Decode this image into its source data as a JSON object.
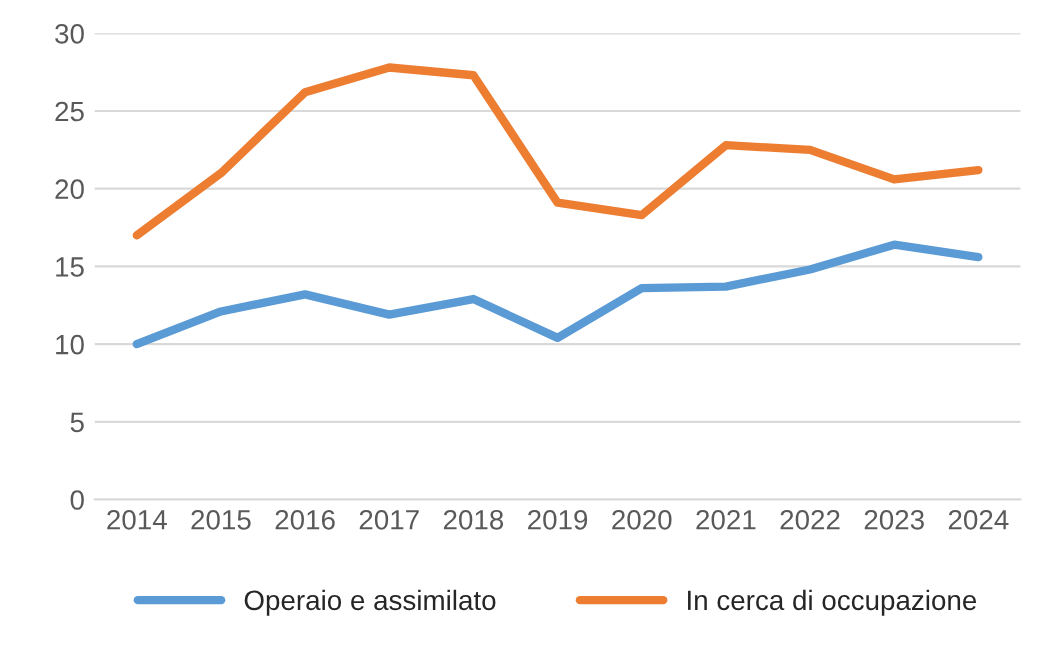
{
  "chart_data": {
    "type": "line",
    "categories": [
      "2014",
      "2015",
      "2016",
      "2017",
      "2018",
      "2019",
      "2020",
      "2021",
      "2022",
      "2023",
      "2024"
    ],
    "series": [
      {
        "name": "Operaio e assimilato",
        "color": "#5b9bd5",
        "values": [
          10.0,
          12.1,
          13.2,
          11.9,
          12.9,
          10.4,
          13.6,
          13.7,
          14.8,
          16.4,
          15.6
        ]
      },
      {
        "name": "In cerca di occupazione",
        "color": "#ed7d31",
        "values": [
          17.0,
          21.0,
          26.2,
          27.8,
          27.3,
          19.1,
          18.3,
          22.8,
          22.5,
          20.6,
          21.2
        ]
      }
    ],
    "ylim": [
      0,
      30
    ],
    "yticks": [
      0,
      5,
      10,
      15,
      20,
      25,
      30
    ],
    "grid": "y",
    "legend": "bottom",
    "marker": "none",
    "line_style": "solid"
  }
}
